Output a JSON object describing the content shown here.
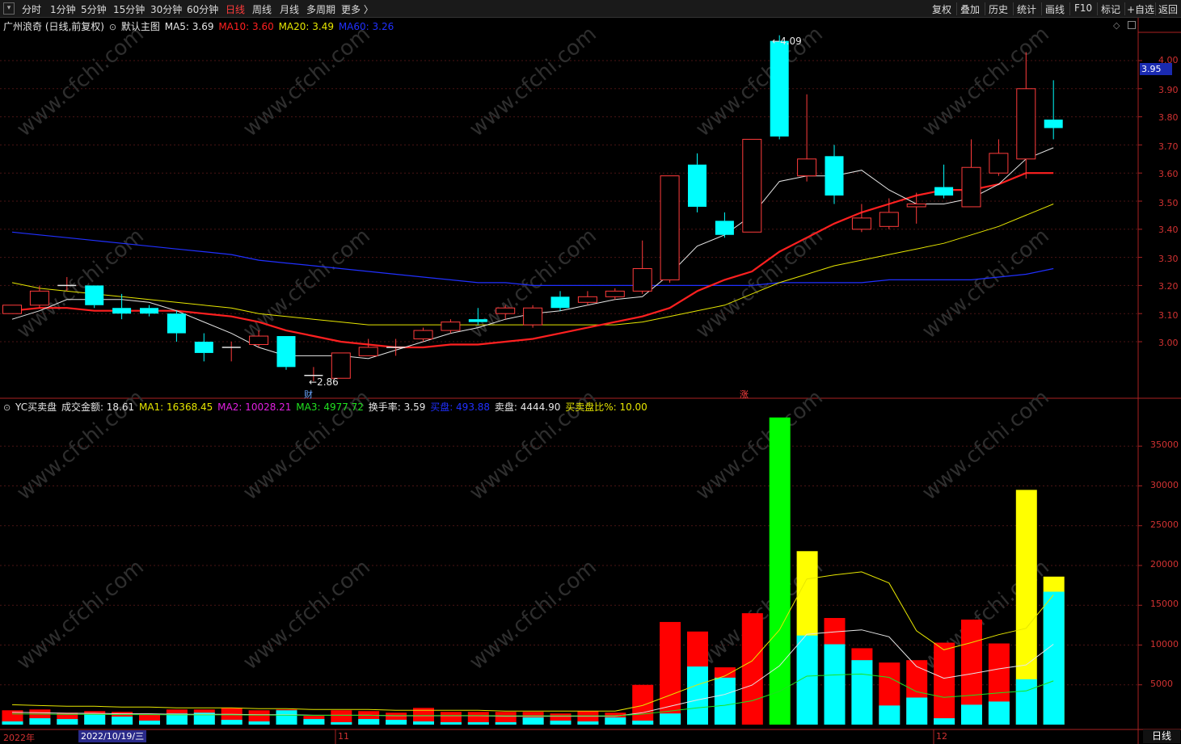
{
  "toolbar": {
    "menu_icon": "▾",
    "periods": [
      "分时",
      "1分钟",
      "5分钟",
      "15分钟",
      "30分钟",
      "60分钟",
      "日线",
      "周线",
      "月线",
      "多周期",
      "更多 〉"
    ],
    "active_period": "日线",
    "right_tools": [
      "复权",
      "叠加",
      "历史",
      "统计",
      "画线",
      "F10",
      "标记",
      "+自选",
      "返回"
    ]
  },
  "main_legend": {
    "stock": "广州浪奇 (日线,前复权)",
    "template_icon": "settings-circle-icon",
    "template": "默认主图",
    "ma5": "MA5: 3.69",
    "ma10": "MA10: 3.60",
    "ma20": "MA20: 3.49",
    "ma60": "MA60: 3.26",
    "colors": {
      "ma5": "#e6e6e6",
      "ma10": "#ff2020",
      "ma20": "#e6e600",
      "ma60": "#2030ff"
    }
  },
  "sub_legend": {
    "name": "YC买卖盘",
    "amount": "成交金额: 18.61",
    "ma1": "MA1: 16368.45",
    "ma2": "MA2: 10028.21",
    "ma3": "MA3: 4977.72",
    "turnover": "换手率: 3.59",
    "buy": "买盘: 493.88",
    "sell": "卖盘: 4444.90",
    "ratio": "买卖盘比%: 10.00"
  },
  "annotations": {
    "high": "4.09",
    "low": "←2.86",
    "finance_mark": "财",
    "limit_mark": "涨",
    "current_price": "3.95"
  },
  "price_axis": [
    "4.00",
    "3.90",
    "3.80",
    "3.70",
    "3.60",
    "3.50",
    "3.40",
    "3.30",
    "3.20",
    "3.10",
    "3.00"
  ],
  "volume_axis": [
    "35000",
    "30000",
    "25000",
    "20000",
    "15000",
    "10000",
    "5000"
  ],
  "x_axis": {
    "year": "2022年",
    "selected_date": "2022/10/19/三",
    "m11": "11",
    "m12": "12"
  },
  "period_button": "日线",
  "watermark": "www.cfchi.com",
  "chart_data": {
    "type": "candlestick",
    "candles": [
      {
        "o": 3.1,
        "c": 3.13,
        "h": 3.13,
        "l": 3.1
      },
      {
        "o": 3.13,
        "c": 3.18,
        "h": 3.2,
        "l": 3.12
      },
      {
        "o": 3.2,
        "c": 3.2,
        "h": 3.23,
        "l": 3.18
      },
      {
        "o": 3.2,
        "c": 3.13,
        "h": 3.2,
        "l": 3.12
      },
      {
        "o": 3.12,
        "c": 3.1,
        "h": 3.17,
        "l": 3.08
      },
      {
        "o": 3.12,
        "c": 3.1,
        "h": 3.13,
        "l": 3.09
      },
      {
        "o": 3.1,
        "c": 3.03,
        "h": 3.11,
        "l": 3.0
      },
      {
        "o": 3.0,
        "c": 2.96,
        "h": 3.03,
        "l": 2.93
      },
      {
        "o": 2.98,
        "c": 2.98,
        "h": 3.0,
        "l": 2.93
      },
      {
        "o": 2.99,
        "c": 3.02,
        "h": 3.04,
        "l": 2.98
      },
      {
        "o": 3.02,
        "c": 2.91,
        "h": 3.02,
        "l": 2.9
      },
      {
        "o": 2.88,
        "c": 2.88,
        "h": 2.91,
        "l": 2.86
      },
      {
        "o": 2.87,
        "c": 2.96,
        "h": 2.96,
        "l": 2.87
      },
      {
        "o": 2.95,
        "c": 2.98,
        "h": 3.01,
        "l": 2.95
      },
      {
        "o": 2.98,
        "c": 2.98,
        "h": 3.01,
        "l": 2.95
      },
      {
        "o": 3.01,
        "c": 3.04,
        "h": 3.05,
        "l": 3.0
      },
      {
        "o": 3.04,
        "c": 3.07,
        "h": 3.08,
        "l": 3.03
      },
      {
        "o": 3.08,
        "c": 3.07,
        "h": 3.12,
        "l": 3.06
      },
      {
        "o": 3.1,
        "c": 3.12,
        "h": 3.13,
        "l": 3.08
      },
      {
        "o": 3.06,
        "c": 3.12,
        "h": 3.13,
        "l": 3.05
      },
      {
        "o": 3.16,
        "c": 3.12,
        "h": 3.18,
        "l": 3.11
      },
      {
        "o": 3.14,
        "c": 3.16,
        "h": 3.18,
        "l": 3.13
      },
      {
        "o": 3.16,
        "c": 3.18,
        "h": 3.19,
        "l": 3.15
      },
      {
        "o": 3.18,
        "c": 3.26,
        "h": 3.36,
        "l": 3.17
      },
      {
        "o": 3.22,
        "c": 3.59,
        "h": 3.59,
        "l": 3.21
      },
      {
        "o": 3.63,
        "c": 3.48,
        "h": 3.67,
        "l": 3.46
      },
      {
        "o": 3.43,
        "c": 3.38,
        "h": 3.46,
        "l": 3.37
      },
      {
        "o": 3.39,
        "c": 3.72,
        "h": 3.72,
        "l": 3.39
      },
      {
        "o": 4.07,
        "c": 3.73,
        "h": 4.09,
        "l": 3.72
      },
      {
        "o": 3.59,
        "c": 3.65,
        "h": 3.88,
        "l": 3.57
      },
      {
        "o": 3.66,
        "c": 3.52,
        "h": 3.7,
        "l": 3.49
      },
      {
        "o": 3.4,
        "c": 3.44,
        "h": 3.49,
        "l": 3.39
      },
      {
        "o": 3.41,
        "c": 3.46,
        "h": 3.51,
        "l": 3.4
      },
      {
        "o": 3.48,
        "c": 3.49,
        "h": 3.53,
        "l": 3.42
      },
      {
        "o": 3.55,
        "c": 3.52,
        "h": 3.63,
        "l": 3.51
      },
      {
        "o": 3.48,
        "c": 3.62,
        "h": 3.72,
        "l": 3.48
      },
      {
        "o": 3.6,
        "c": 3.67,
        "h": 3.72,
        "l": 3.59
      },
      {
        "o": 3.65,
        "c": 3.9,
        "h": 4.03,
        "l": 3.58
      },
      {
        "o": 3.79,
        "c": 3.76,
        "h": 3.93,
        "l": 3.72
      }
    ],
    "ma5": [
      3.08,
      3.11,
      3.15,
      3.15,
      3.15,
      3.14,
      3.11,
      3.07,
      3.03,
      2.98,
      2.95,
      2.95,
      2.95,
      2.94,
      2.97,
      3.0,
      3.03,
      3.05,
      3.08,
      3.1,
      3.11,
      3.13,
      3.15,
      3.16,
      3.24,
      3.34,
      3.38,
      3.45,
      3.57,
      3.59,
      3.59,
      3.61,
      3.54,
      3.49,
      3.49,
      3.51,
      3.56,
      3.65,
      3.69
    ],
    "ma10": [
      3.11,
      3.12,
      3.12,
      3.11,
      3.11,
      3.11,
      3.11,
      3.1,
      3.09,
      3.07,
      3.04,
      3.02,
      3.0,
      2.99,
      2.98,
      2.98,
      2.99,
      2.99,
      3.0,
      3.01,
      3.03,
      3.05,
      3.07,
      3.09,
      3.12,
      3.18,
      3.22,
      3.25,
      3.32,
      3.37,
      3.42,
      3.46,
      3.49,
      3.52,
      3.54,
      3.54,
      3.56,
      3.6,
      3.6
    ],
    "ma20": [
      3.21,
      3.19,
      3.18,
      3.17,
      3.16,
      3.15,
      3.14,
      3.13,
      3.12,
      3.1,
      3.09,
      3.08,
      3.07,
      3.06,
      3.06,
      3.06,
      3.06,
      3.06,
      3.06,
      3.06,
      3.06,
      3.06,
      3.06,
      3.07,
      3.09,
      3.11,
      3.13,
      3.17,
      3.21,
      3.24,
      3.27,
      3.29,
      3.31,
      3.33,
      3.35,
      3.38,
      3.41,
      3.45,
      3.49
    ],
    "ma60": [
      3.39,
      3.38,
      3.37,
      3.36,
      3.35,
      3.34,
      3.33,
      3.32,
      3.31,
      3.29,
      3.28,
      3.27,
      3.26,
      3.25,
      3.24,
      3.23,
      3.22,
      3.21,
      3.21,
      3.2,
      3.2,
      3.2,
      3.2,
      3.2,
      3.2,
      3.2,
      3.2,
      3.2,
      3.21,
      3.21,
      3.21,
      3.21,
      3.22,
      3.22,
      3.22,
      3.22,
      3.23,
      3.24,
      3.26
    ],
    "volume": [
      {
        "total": 1800,
        "buy": 400,
        "color": "red"
      },
      {
        "total": 1900,
        "buy": 800,
        "color": "red"
      },
      {
        "total": 1500,
        "buy": 700,
        "color": "red"
      },
      {
        "total": 1700,
        "buy": 1300,
        "color": "red"
      },
      {
        "total": 1600,
        "buy": 1000,
        "color": "red"
      },
      {
        "total": 1300,
        "buy": 500,
        "color": "red"
      },
      {
        "total": 1900,
        "buy": 1400,
        "color": "red"
      },
      {
        "total": 1900,
        "buy": 1500,
        "color": "red"
      },
      {
        "total": 2100,
        "buy": 600,
        "color": "red"
      },
      {
        "total": 1800,
        "buy": 400,
        "color": "red"
      },
      {
        "total": 1900,
        "buy": 1800,
        "color": "red"
      },
      {
        "total": 1100,
        "buy": 700,
        "color": "red"
      },
      {
        "total": 1800,
        "buy": 300,
        "color": "red"
      },
      {
        "total": 1700,
        "buy": 700,
        "color": "red"
      },
      {
        "total": 1500,
        "buy": 600,
        "color": "red"
      },
      {
        "total": 2100,
        "buy": 400,
        "color": "red"
      },
      {
        "total": 1600,
        "buy": 300,
        "color": "red"
      },
      {
        "total": 1600,
        "buy": 300,
        "color": "red"
      },
      {
        "total": 1600,
        "buy": 300,
        "color": "red"
      },
      {
        "total": 1600,
        "buy": 900,
        "color": "red"
      },
      {
        "total": 1400,
        "buy": 500,
        "color": "red"
      },
      {
        "total": 1700,
        "buy": 400,
        "color": "red"
      },
      {
        "total": 1500,
        "buy": 900,
        "color": "red"
      },
      {
        "total": 5000,
        "buy": 500,
        "color": "red"
      },
      {
        "total": 12900,
        "buy": 1400,
        "color": "red"
      },
      {
        "total": 11700,
        "buy": 7300,
        "color": "red"
      },
      {
        "total": 7200,
        "buy": 5900,
        "color": "red"
      },
      {
        "total": 14000,
        "buy": 0,
        "color": "red"
      },
      {
        "total": 38600,
        "buy": 0,
        "color": "green"
      },
      {
        "total": 21800,
        "buy": 11200,
        "color": "yellow"
      },
      {
        "total": 13400,
        "buy": 10100,
        "color": "red"
      },
      {
        "total": 9600,
        "buy": 8100,
        "color": "red"
      },
      {
        "total": 7800,
        "buy": 2400,
        "color": "red"
      },
      {
        "total": 8100,
        "buy": 3400,
        "color": "red"
      },
      {
        "total": 10300,
        "buy": 800,
        "color": "red"
      },
      {
        "total": 13200,
        "buy": 2500,
        "color": "red"
      },
      {
        "total": 10200,
        "buy": 2900,
        "color": "red"
      },
      {
        "total": 29500,
        "buy": 5700,
        "color": "yellow"
      },
      {
        "total": 18600,
        "buy": 16700,
        "color": "yellow"
      }
    ],
    "vol_ma": [
      2500,
      2400,
      2300,
      2300,
      2200,
      2200,
      2100,
      2100,
      2100,
      2000,
      2000,
      1900,
      1900,
      1900,
      1800,
      1800,
      1800,
      1800,
      1700,
      1700,
      1700,
      1700,
      1700,
      2400,
      3700,
      5000,
      6100,
      8000,
      11900,
      18300,
      18800,
      19200,
      17800,
      11800,
      9400,
      10300,
      11300,
      12100,
      16300
    ]
  }
}
